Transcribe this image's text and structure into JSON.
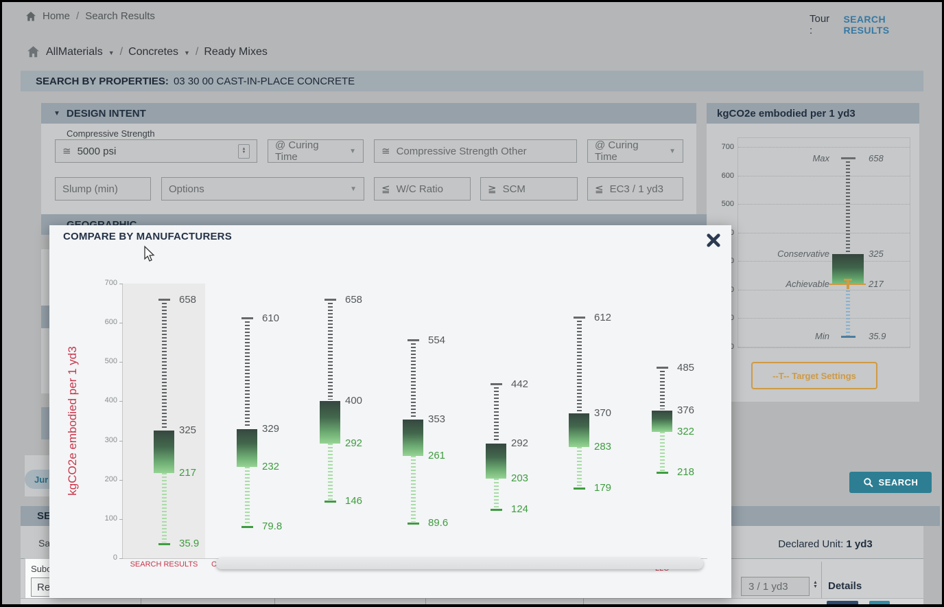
{
  "topbar": {
    "breadcrumb": [
      "Home",
      "Search Results"
    ],
    "tour_label": "Tour :",
    "tour_link": "SEARCH RESULTS"
  },
  "breadcrumb2": {
    "items": [
      "AllMaterials",
      "Concretes",
      "Ready Mixes"
    ]
  },
  "search_by": {
    "label": "SEARCH BY PROPERTIES:",
    "value": "03 30 00 CAST-IN-PLACE CONCRETE"
  },
  "design_intent": {
    "title": "DESIGN INTENT",
    "compressive_strength_label": "Compressive Strength",
    "compressive_strength": {
      "prefix": "≅",
      "value": "5000 psi"
    },
    "curing_time_1": "@ Curing Time",
    "compressive_strength_other": {
      "prefix": "≅",
      "placeholder": "Compressive Strength Other"
    },
    "curing_time_2": "@ Curing Time",
    "slump": "Slump (min)",
    "options": "Options",
    "wc_ratio": {
      "prefix": "≦",
      "placeholder": "W/C Ratio"
    },
    "scm": {
      "prefix": "≧",
      "placeholder": "SCM"
    },
    "ec3": {
      "prefix": "≦",
      "placeholder": "EC3 / 1 yd3"
    }
  },
  "geographic": {
    "title": "GEOGRAPHIC"
  },
  "target_panel": {
    "title": "kgCO2e embodied per 1 yd3",
    "button_label": "--T--  Target Settings"
  },
  "modal": {
    "title": "COMPARE BY MANUFACTURERS"
  },
  "chart_data": [
    {
      "type": "boxplot",
      "title": "COMPARE BY MANUFACTURERS",
      "ylabel": "kgCO2e embodied per 1 yd3",
      "ylim": [
        0,
        700
      ],
      "yticks": [
        0,
        100,
        200,
        300,
        400,
        500,
        600,
        700
      ],
      "grid": false,
      "boxes": [
        {
          "label": "SEARCH RESULTS",
          "max": 658,
          "upper": 325,
          "lower": 217,
          "min": 35.9
        },
        {
          "label": "C",
          "max": 610,
          "upper": 329,
          "lower": 232,
          "min": 79.8
        },
        {
          "label": "",
          "max": 658,
          "upper": 400,
          "lower": 292,
          "min": 146
        },
        {
          "label": "",
          "max": 554,
          "upper": 353,
          "lower": 261,
          "min": 89.6
        },
        {
          "label": "",
          "max": 442,
          "upper": 292,
          "lower": 203,
          "min": 124
        },
        {
          "label": "",
          "max": 612,
          "upper": 370,
          "lower": 283,
          "min": 179
        },
        {
          "label": "LLC",
          "max": 485,
          "upper": 376,
          "lower": 322,
          "min": 218
        }
      ]
    },
    {
      "type": "boxplot",
      "title": "kgCO2e embodied per 1 yd3",
      "ylim": [
        0,
        700
      ],
      "yticks": [
        0,
        100,
        200,
        300,
        400,
        500,
        600,
        700
      ],
      "grid": true,
      "labels": {
        "max": "Max",
        "upper": "Conservative",
        "lower": "Achievable",
        "min": "Min"
      },
      "values": {
        "max": 658,
        "upper": 325,
        "lower": 217,
        "min": 35.9
      }
    }
  ],
  "search_button": "SEARCH",
  "section_bar": {
    "partial_title": "SE"
  },
  "left_fragments": {
    "jurisdiction_badge": "Jur",
    "save_text": "Sa",
    "subcategory_label": "Subc",
    "subcategory_value": "Re"
  },
  "declared_unit": {
    "label": "Declared Unit:",
    "value": "1 yd3"
  },
  "results_table": {
    "filter_value": "3 / 1 yd3",
    "details_header": "Details"
  }
}
